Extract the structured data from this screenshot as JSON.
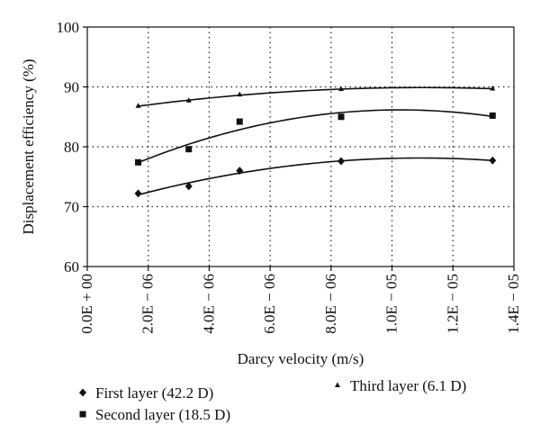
{
  "chart_data": {
    "type": "scatter",
    "xlabel": "Darcy velocity (m/s)",
    "ylabel": "Displacement efficiency (%)",
    "xlim": [
      0,
      1.4e-05
    ],
    "ylim": [
      60,
      100
    ],
    "x_ticks": [
      0,
      2e-06,
      4e-06,
      6e-06,
      8e-06,
      1e-05,
      1.2e-05,
      1.4e-05
    ],
    "x_tick_labels": [
      "0.0E + 00",
      "2.0E − 06",
      "4.0E − 06",
      "6.0E − 06",
      "8.0E − 06",
      "1.0E − 05",
      "1.2E − 05",
      "1.4E − 05"
    ],
    "y_ticks": [
      60,
      70,
      80,
      90,
      100
    ],
    "y_tick_labels": [
      "60",
      "70",
      "80",
      "90",
      "100"
    ],
    "grid": "dotted",
    "trendlines": true,
    "series": [
      {
        "name": "First layer (42.2 D)",
        "marker": "diamond",
        "x": [
          1.67e-06,
          3.33e-06,
          5e-06,
          8.33e-06,
          1.33e-05
        ],
        "values": [
          72.2,
          73.4,
          76.0,
          77.6,
          77.7
        ]
      },
      {
        "name": "Second layer (18.5 D)",
        "marker": "square",
        "x": [
          1.67e-06,
          3.33e-06,
          5e-06,
          8.33e-06,
          1.33e-05
        ],
        "values": [
          77.4,
          79.6,
          84.2,
          85.0,
          85.2
        ]
      },
      {
        "name": "Third layer (6.1 D)",
        "marker": "triangle",
        "x": [
          1.67e-06,
          3.33e-06,
          5e-06,
          8.33e-06,
          1.33e-05
        ],
        "values": [
          86.8,
          87.7,
          88.7,
          89.6,
          89.7
        ]
      }
    ]
  }
}
